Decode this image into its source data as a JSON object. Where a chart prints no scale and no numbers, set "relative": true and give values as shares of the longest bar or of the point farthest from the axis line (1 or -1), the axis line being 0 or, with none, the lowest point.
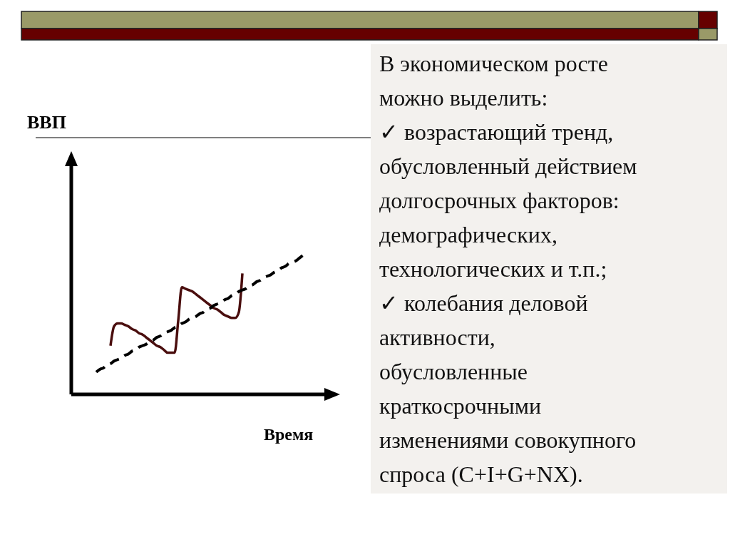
{
  "chart_data": {
    "type": "line",
    "relative": true,
    "xlabel": "Время",
    "categories": [
      null,
      null,
      null,
      null,
      null,
      null,
      null,
      null,
      null,
      null,
      null,
      null,
      null,
      null,
      null,
      null,
      null,
      null,
      null,
      null,
      null,
      null,
      null,
      null,
      null,
      null,
      null,
      null,
      null,
      null,
      null,
      null,
      null,
      null,
      null,
      null,
      null,
      null,
      null,
      null,
      null,
      null,
      null,
      null,
      null,
      null,
      null,
      null,
      null,
      null,
      null,
      null,
      null,
      null,
      null,
      null,
      null,
      null,
      null
    ],
    "series": [
      {
        "color": "#4a0e0e",
        "line_style": "solid",
        "values": [
          null,
          null,
          null,
          null,
          0.35,
          0.49,
          0.51,
          0.51,
          0.5,
          0.49,
          0.47,
          0.46,
          0.44,
          0.43,
          0.41,
          0.39,
          0.37,
          0.35,
          0.34,
          0.32,
          0.3,
          0.3,
          0.3,
          0.53,
          0.77,
          0.76,
          0.75,
          0.74,
          0.72,
          0.7,
          0.68,
          0.66,
          0.64,
          0.62,
          0.61,
          0.59,
          0.57,
          0.56,
          0.55,
          0.55,
          0.59,
          0.87,
          null,
          null,
          null,
          null,
          null,
          null,
          null,
          null,
          null,
          null,
          null,
          null,
          null,
          null,
          null,
          null,
          null
        ]
      },
      {
        "color": "#000000",
        "line_style": "dashed",
        "values": [
          0.16,
          0.18,
          0.19,
          0.21,
          0.22,
          0.24,
          0.25,
          0.26,
          0.28,
          0.29,
          0.31,
          0.32,
          0.34,
          0.35,
          0.36,
          0.38,
          0.39,
          0.41,
          0.42,
          0.44,
          0.45,
          0.46,
          0.48,
          0.49,
          0.51,
          0.52,
          0.54,
          0.55,
          0.56,
          0.58,
          0.59,
          0.61,
          0.62,
          0.64,
          0.65,
          0.66,
          0.68,
          0.69,
          0.71,
          0.72,
          0.74,
          0.75,
          0.76,
          0.78,
          0.79,
          0.81,
          0.82,
          0.84,
          0.85,
          0.86,
          0.88,
          0.89,
          0.91,
          0.92,
          0.94,
          0.95,
          0.96,
          0.98,
          1
        ]
      }
    ],
    "annotations": [
      "ВВП",
      "В экономическом росте",
      "можно выделить:",
      "✓ возрастающий тренд,",
      "обусловленный действием",
      "долгосрочных факторов:",
      "демографических,",
      "технологических и т.п.;",
      "✓ колебания деловой",
      "активности,",
      "обусловленные",
      "краткосрочными",
      "изменениями совокупного",
      "спроса (C+I+G+NX)."
    ]
  }
}
